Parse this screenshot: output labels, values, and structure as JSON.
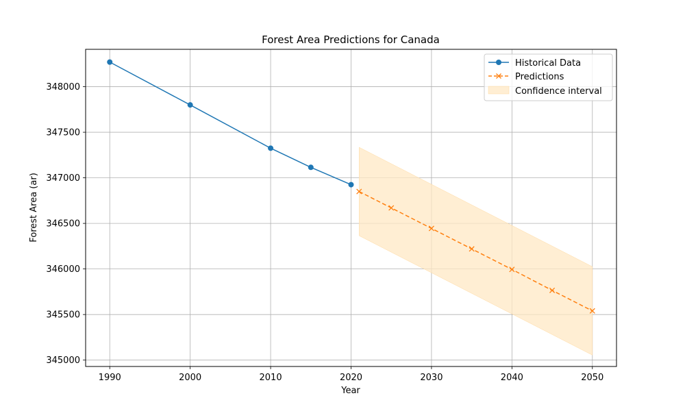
{
  "chart_data": {
    "type": "line",
    "title": "Forest Area Predictions for Canada",
    "xlabel": "Year",
    "ylabel": "Forest Area (ar)",
    "xlim": [
      1987,
      2053
    ],
    "ylim": [
      344930,
      348410
    ],
    "xticks": [
      1990,
      2000,
      2010,
      2020,
      2030,
      2040,
      2050
    ],
    "yticks": [
      345000,
      345500,
      346000,
      346500,
      347000,
      347500,
      348000
    ],
    "grid": true,
    "legend_position": "top-right",
    "series": [
      {
        "name": "Historical Data",
        "style": "solid line with circle markers",
        "color": "#1f77b4",
        "x": [
          1990,
          2000,
          2010,
          2015,
          2020
        ],
        "y": [
          348270,
          347800,
          347325,
          347115,
          346925
        ]
      },
      {
        "name": "Predictions",
        "style": "dashed line with x markers",
        "color": "#ff7f0e",
        "x": [
          2021,
          2025,
          2030,
          2035,
          2040,
          2045,
          2050
        ],
        "y": [
          346850,
          346670,
          346445,
          346220,
          345995,
          345765,
          345540
        ]
      }
    ],
    "confidence_interval": {
      "name": "Confidence interval",
      "color": "#ffe8c4",
      "x": [
        2021,
        2050
      ],
      "upper": [
        347335,
        346025
      ],
      "lower": [
        346365,
        345055
      ]
    }
  }
}
